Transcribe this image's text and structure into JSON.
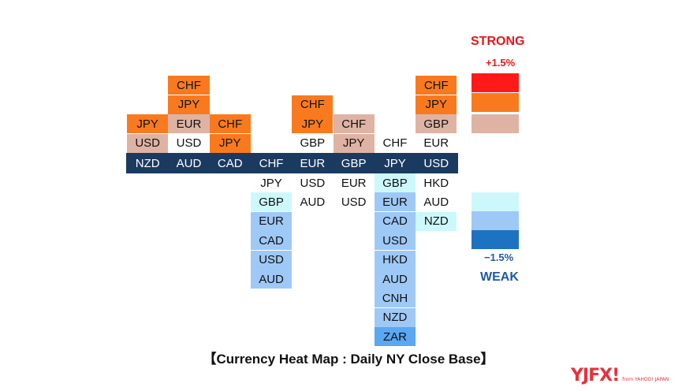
{
  "chart_data": {
    "type": "heatmap",
    "title": "【Currency Heat Map : Daily NY Close Base】",
    "columns": [
      {
        "base": "NZD",
        "above": [
          "USD",
          "JPY"
        ],
        "below": []
      },
      {
        "base": "AUD",
        "above": [
          "USD",
          "EUR",
          "JPY",
          "CHF"
        ],
        "below": []
      },
      {
        "base": "CAD",
        "above": [
          "JPY",
          "CHF"
        ],
        "below": []
      },
      {
        "base": "CHF",
        "above": [],
        "below": [
          "JPY",
          "GBP",
          "EUR",
          "CAD",
          "USD",
          "AUD"
        ]
      },
      {
        "base": "EUR",
        "above": [
          "GBP",
          "JPY",
          "CHF"
        ],
        "below": [
          "USD",
          "AUD"
        ]
      },
      {
        "base": "GBP",
        "above": [
          "JPY",
          "CHF"
        ],
        "below": [
          "EUR",
          "USD"
        ]
      },
      {
        "base": "JPY",
        "above": [
          "CHF"
        ],
        "below": [
          "GBP",
          "EUR",
          "CAD",
          "USD",
          "HKD",
          "AUD",
          "CNH",
          "NZD",
          "ZAR"
        ]
      },
      {
        "base": "USD",
        "above": [
          "EUR",
          "GBP",
          "JPY",
          "CHF"
        ],
        "below": [
          "HKD",
          "AUD",
          "NZD"
        ]
      }
    ],
    "colors": {
      "NZD": {
        "USD": "#dfb3a3",
        "JPY": "#f97a1e"
      },
      "AUD": {
        "USD": "#ffffff",
        "EUR": "#dfb3a3",
        "JPY": "#f97a1e",
        "CHF": "#f97a1e"
      },
      "CAD": {
        "JPY": "#f97a1e",
        "CHF": "#f97a1e"
      },
      "CHF": {
        "JPY": "#ffffff",
        "GBP": "#cdf8fb",
        "EUR": "#9ec9f6",
        "CAD": "#9ec9f6",
        "USD": "#9ec9f6",
        "AUD": "#9ec9f6"
      },
      "EUR": {
        "GBP": "#ffffff",
        "JPY": "#f97a1e",
        "CHF": "#f97a1e",
        "USD": "#ffffff",
        "AUD": "#ffffff"
      },
      "GBP": {
        "JPY": "#dfb3a3",
        "CHF": "#dfb3a3",
        "EUR": "#ffffff",
        "USD": "#ffffff"
      },
      "JPY": {
        "CHF": "#ffffff",
        "GBP": "#cdf8fb",
        "EUR": "#9ec9f6",
        "CAD": "#9ec9f6",
        "USD": "#9ec9f6",
        "HKD": "#9ec9f6",
        "AUD": "#9ec9f6",
        "CNH": "#9ec9f6",
        "NZD": "#9ec9f6",
        "ZAR": "#5aa7f2"
      },
      "USD": {
        "EUR": "#ffffff",
        "GBP": "#dfb3a3",
        "JPY": "#f97a1e",
        "CHF": "#f97a1e",
        "HKD": "#ffffff",
        "AUD": "#ffffff",
        "NZD": "#cdf8fb"
      }
    },
    "legend": {
      "strong_label": "STRONG",
      "strong_value": "+1.5%",
      "weak_value": "−1.5%",
      "weak_label": "WEAK",
      "strong_colors": [
        "#ff1a1a",
        "#f97a1e",
        "#dfb3a3"
      ],
      "weak_colors": [
        "#cdf8fb",
        "#9ec9f6",
        "#1e72c2"
      ],
      "strong_text_color": "#e8161b",
      "weak_text_color": "#1e5aa8"
    },
    "base_color": "#1b3a60"
  },
  "logo": {
    "text": "YJFX!",
    "sub": "from YAHOO! JAPAN"
  }
}
